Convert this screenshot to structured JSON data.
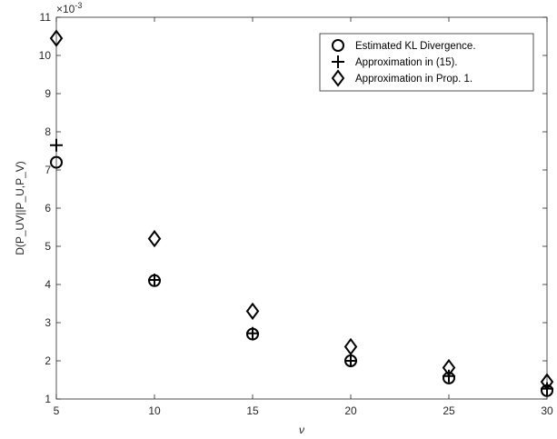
{
  "chart_data": {
    "type": "scatter",
    "xlabel": "ν",
    "ylabel": "D(P_UV||P_U,P_V)",
    "y_multiplier": "×10",
    "y_multiplier_exponent": "-3",
    "xlim": [
      5,
      30
    ],
    "ylim": [
      1,
      11
    ],
    "xticks": [
      5,
      10,
      15,
      20,
      25,
      30
    ],
    "yticks": [
      1,
      2,
      3,
      4,
      5,
      6,
      7,
      8,
      9,
      10,
      11
    ],
    "grid": false,
    "legend_position": "top-right",
    "x": [
      5,
      10,
      15,
      20,
      25,
      30
    ],
    "series": [
      {
        "name": "Estimated KL Divergence.",
        "marker": "circle",
        "values": [
          7.2,
          4.1,
          2.7,
          2.0,
          1.55,
          1.22
        ]
      },
      {
        "name": "Approximation in (15).",
        "marker": "plus",
        "values": [
          7.65,
          4.12,
          2.72,
          2.0,
          1.6,
          1.27
        ]
      },
      {
        "name": "Approximation in Prop. 1.",
        "marker": "diamond",
        "values": [
          10.45,
          5.2,
          3.3,
          2.37,
          1.82,
          1.45
        ]
      }
    ]
  },
  "colors": {
    "marker": "#000000",
    "axis": "#262626"
  }
}
